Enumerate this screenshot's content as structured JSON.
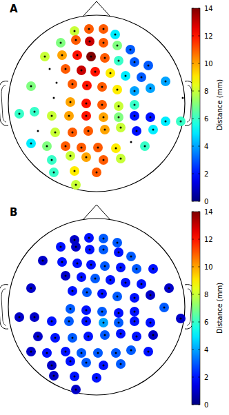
{
  "chart_data": [
    {
      "type": "scatter",
      "title": "A",
      "marker": "circle",
      "tick_labels": false,
      "xlim": [
        -128,
        128
      ],
      "ylim": [
        -128,
        128
      ],
      "x": [
        -32,
        -11,
        10,
        27,
        -52,
        -30,
        -10,
        10,
        30,
        49,
        -75,
        -50,
        -28,
        -8,
        12,
        32,
        55,
        75,
        -68,
        -45,
        -22,
        -2,
        20,
        42,
        65,
        100,
        -95,
        -58,
        -35,
        -14,
        8,
        30,
        55,
        78,
        -62,
        -38,
        -15,
        8,
        32,
        55,
        125,
        -112,
        -90,
        -65,
        -40,
        -15,
        10,
        32,
        55,
        78,
        100,
        122,
        -85,
        -60,
        -35,
        -12,
        12,
        35,
        58,
        82,
        -95,
        -72,
        -45,
        -22,
        2,
        28,
        50,
        70,
        -65,
        -38,
        -15,
        10,
        35,
        -62,
        -32,
        0,
        -30
      ],
      "y": [
        105,
        108,
        108,
        100,
        88,
        92,
        90,
        88,
        84,
        78,
        68,
        70,
        70,
        68,
        66,
        62,
        60,
        55,
        50,
        50,
        48,
        46,
        44,
        40,
        38,
        32,
        25,
        30,
        28,
        26,
        24,
        20,
        18,
        22,
        8,
        2,
        0,
        -2,
        -4,
        -2,
        8,
        -15,
        -12,
        -18,
        -18,
        -18,
        -20,
        -20,
        -18,
        -20,
        -26,
        -26,
        -40,
        -42,
        -42,
        -40,
        -38,
        -35,
        -40,
        -38,
        -58,
        -62,
        -62,
        -64,
        -64,
        -65,
        -56,
        -62,
        -82,
        -76,
        -78,
        -82,
        -80,
        -100,
        -98,
        -100,
        -118
      ],
      "values": [
        8,
        11,
        11,
        5,
        7,
        11,
        13,
        11,
        7,
        3,
        8,
        10,
        12,
        14,
        11,
        6,
        3,
        3,
        null,
        11,
        13,
        12,
        9,
        5,
        3,
        4,
        7,
        null,
        11,
        12,
        11,
        9,
        4,
        4,
        null,
        10,
        12,
        11,
        8,
        6,
        null,
        6,
        6,
        8,
        10,
        12,
        10,
        7,
        2,
        2,
        5,
        6,
        null,
        8,
        11,
        11,
        10,
        8,
        2,
        5,
        5,
        7,
        11,
        11,
        11,
        9,
        null,
        6,
        6,
        8,
        10,
        11,
        8,
        6,
        9,
        11,
        8
      ],
      "colorbar_label": "Distance (mm)",
      "colorbar_range": [
        0,
        14
      ],
      "colorbar_ticks": [
        0,
        2,
        4,
        6,
        8,
        10,
        12,
        14
      ]
    },
    {
      "type": "scatter",
      "title": "B",
      "marker": "circle",
      "tick_labels": false,
      "xlim": [
        -128,
        128
      ],
      "ylim": [
        -128,
        128
      ],
      "x": [
        -32,
        -11,
        10,
        30,
        -52,
        -30,
        -10,
        10,
        32,
        50,
        -78,
        -50,
        -28,
        -8,
        12,
        35,
        58,
        82,
        -45,
        -22,
        -2,
        20,
        42,
        65,
        -95,
        -35,
        -14,
        8,
        30,
        55,
        78,
        105,
        -38,
        -15,
        8,
        32,
        55,
        98,
        -112,
        -90,
        -65,
        -40,
        -15,
        10,
        32,
        55,
        78,
        122,
        -85,
        -60,
        -35,
        -12,
        12,
        35,
        58,
        82,
        -95,
        -72,
        -45,
        -22,
        2,
        28,
        50,
        75,
        -65,
        -38,
        -15,
        10,
        35,
        -62,
        -32,
        0,
        -30
      ],
      "y": [
        97,
        100,
        99,
        93,
        87,
        87,
        83,
        83,
        79,
        73,
        67,
        65,
        63,
        61,
        59,
        57,
        55,
        55,
        45,
        43,
        41,
        39,
        35,
        33,
        27,
        23,
        21,
        19,
        15,
        13,
        17,
        27,
        -3,
        -5,
        -7,
        -9,
        -7,
        -1,
        -15,
        -15,
        -21,
        -21,
        -21,
        -23,
        -23,
        -21,
        -23,
        -17,
        -43,
        -45,
        -45,
        -43,
        -41,
        -39,
        -43,
        -41,
        -65,
        -67,
        -65,
        -67,
        -67,
        -67,
        -63,
        -65,
        -85,
        -79,
        -81,
        -85,
        -83,
        -100,
        -101,
        -103,
        -120
      ],
      "values": [
        1,
        2,
        3,
        3,
        2,
        1,
        2,
        3,
        2,
        3,
        1,
        2,
        2,
        2,
        3,
        2,
        3,
        2,
        1,
        2,
        3,
        2,
        2,
        2,
        1,
        2,
        3,
        2,
        3,
        2,
        1,
        1,
        3,
        2,
        3,
        2,
        2,
        3,
        1,
        1,
        2,
        3,
        2,
        4,
        3,
        2,
        2,
        1,
        1,
        2,
        3,
        2,
        3,
        2,
        2,
        1,
        1,
        2,
        2,
        3,
        3,
        3,
        3,
        2,
        1,
        2,
        3,
        2,
        3,
        1,
        2,
        2,
        1
      ],
      "colorbar_label": "Distance (mm)",
      "colorbar_range": [
        0,
        14
      ],
      "colorbar_ticks": [
        0,
        2,
        4,
        6,
        8,
        10,
        12,
        14
      ]
    }
  ]
}
